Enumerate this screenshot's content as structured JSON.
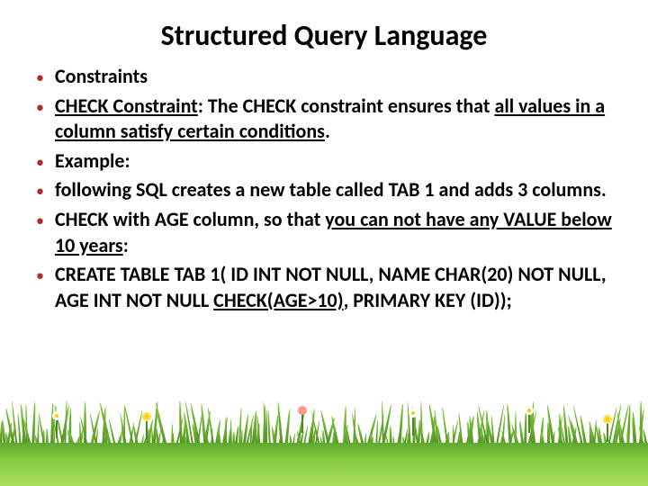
{
  "title": "Structured Query Language",
  "bullets": {
    "b0": "Constraints",
    "b1a": "CHECK Constraint",
    "b1b": ": The CHECK constraint ensures that ",
    "b1c": "all values in a column satisfy certain conditions",
    "b1d": ".",
    "b2": "Example:",
    "b3": "following SQL creates a new table called TAB 1 and adds 3 columns.",
    "b4a": "CHECK with AGE column, so that ",
    "b4b": "you can not have any VALUE below 10 years",
    "b4c": ":",
    "b5a": "CREATE TABLE TAB 1( ID INT NOT NULL, NAME CHAR(20) NOT NULL, AGE INT NOT NULL ",
    "b5b": "CHECK(AGE>10)",
    "b5c": ", PRIMARY KEY (ID));"
  },
  "colors": {
    "bullet_marker": "#b02b2b",
    "text": "#000000",
    "grass_dark": "#4a8a1f",
    "grass_light": "#a8e05a",
    "flower_white": "#ffffff",
    "flower_yellow": "#ffe04a",
    "flower_pink": "#ff8ab5"
  }
}
